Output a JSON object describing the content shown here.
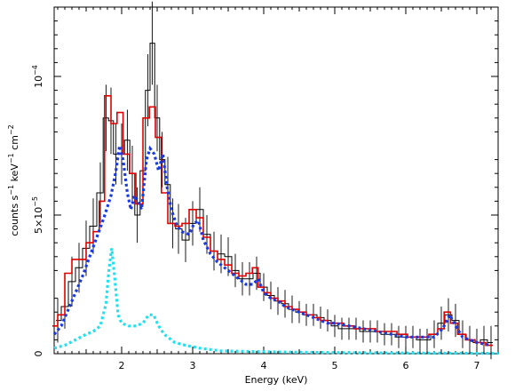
{
  "chart_data": {
    "type": "line",
    "title": "",
    "xlabel": "Energy (keV)",
    "ylabel_parts": {
      "main": "counts s",
      "exp1": "−1",
      "mid": " keV",
      "exp2": "−1",
      "tail": " cm",
      "exp3": "−2"
    },
    "xlim": [
      1.05,
      7.3
    ],
    "ylim": [
      0,
      0.000125
    ],
    "x_ticks": [
      {
        "value": 2,
        "label": "2"
      },
      {
        "value": 3,
        "label": "3"
      },
      {
        "value": 4,
        "label": "4"
      },
      {
        "value": 5,
        "label": "5"
      },
      {
        "value": 6,
        "label": "6"
      },
      {
        "value": 7,
        "label": "7"
      }
    ],
    "y_ticks": [
      {
        "value": 0,
        "mantissa": "0",
        "exp": ""
      },
      {
        "value": 5e-05,
        "mantissa": "5×10",
        "exp": "−5"
      },
      {
        "value": 0.0001,
        "mantissa": "10",
        "exp": "−4"
      }
    ],
    "series": [
      {
        "role": "data",
        "style": "step-errorbar",
        "color": "#000000",
        "points": [
          [
            1.1,
            1.2e-05,
            8e-06
          ],
          [
            1.2,
            1.7e-05,
            8e-06
          ],
          [
            1.3,
            2.6e-05,
            9e-06
          ],
          [
            1.4,
            3.1e-05,
            9e-06
          ],
          [
            1.5,
            3.8e-05,
            1e-05
          ],
          [
            1.6,
            4.6e-05,
            1e-05
          ],
          [
            1.7,
            5.8e-05,
            1.1e-05
          ],
          [
            1.78,
            8.5e-05,
            1.2e-05
          ],
          [
            1.85,
            8.4e-05,
            1.2e-05
          ],
          [
            1.92,
            7.2e-05,
            1.1e-05
          ],
          [
            2.0,
            7.2e-05,
            1.1e-05
          ],
          [
            2.08,
            7.7e-05,
            1.1e-05
          ],
          [
            2.15,
            6.5e-05,
            1e-05
          ],
          [
            2.22,
            5e-05,
            1e-05
          ],
          [
            2.3,
            6.6e-05,
            1e-05
          ],
          [
            2.37,
            9.5e-05,
            1.3e-05
          ],
          [
            2.43,
            0.000112,
            1.5e-05
          ],
          [
            2.5,
            8.5e-05,
            1.2e-05
          ],
          [
            2.57,
            7e-05,
            1e-05
          ],
          [
            2.65,
            6.1e-05,
            1e-05
          ],
          [
            2.72,
            4.7e-05,
            9e-06
          ],
          [
            2.8,
            4.5e-05,
            9e-06
          ],
          [
            2.9,
            4.1e-05,
            8e-06
          ],
          [
            3.0,
            4.7e-05,
            8e-06
          ],
          [
            3.1,
            5.2e-05,
            8e-06
          ],
          [
            3.2,
            4.3e-05,
            7e-06
          ],
          [
            3.3,
            3.7e-05,
            7e-06
          ],
          [
            3.4,
            3.6e-05,
            7e-06
          ],
          [
            3.5,
            3.5e-05,
            7e-06
          ],
          [
            3.6,
            3e-05,
            6e-06
          ],
          [
            3.7,
            2.7e-05,
            6e-06
          ],
          [
            3.8,
            2.7e-05,
            6e-06
          ],
          [
            3.9,
            2.9e-05,
            6e-06
          ],
          [
            4.0,
            2.4e-05,
            5e-06
          ],
          [
            4.1,
            2.1e-05,
            5e-06
          ],
          [
            4.2,
            1.9e-05,
            5e-06
          ],
          [
            4.3,
            1.8e-05,
            5e-06
          ],
          [
            4.4,
            1.6e-05,
            5e-06
          ],
          [
            4.5,
            1.5e-05,
            4e-06
          ],
          [
            4.6,
            1.4e-05,
            4e-06
          ],
          [
            4.7,
            1.4e-05,
            4e-06
          ],
          [
            4.8,
            1.3e-05,
            4e-06
          ],
          [
            4.9,
            1.2e-05,
            4e-06
          ],
          [
            5.0,
            1e-05,
            4e-06
          ],
          [
            5.1,
            9e-06,
            4e-06
          ],
          [
            5.2,
            9e-06,
            4e-06
          ],
          [
            5.3,
            9e-06,
            4e-06
          ],
          [
            5.4,
            8e-06,
            4e-06
          ],
          [
            5.5,
            8e-06,
            4e-06
          ],
          [
            5.6,
            8e-06,
            4e-06
          ],
          [
            5.7,
            7e-06,
            4e-06
          ],
          [
            5.8,
            7e-06,
            4e-06
          ],
          [
            5.9,
            6e-06,
            4e-06
          ],
          [
            6.0,
            6e-06,
            4e-06
          ],
          [
            6.1,
            6e-06,
            4e-06
          ],
          [
            6.2,
            5e-06,
            4e-06
          ],
          [
            6.3,
            5e-06,
            4e-06
          ],
          [
            6.4,
            7e-06,
            5e-06
          ],
          [
            6.5,
            1.1e-05,
            6e-06
          ],
          [
            6.6,
            1.4e-05,
            6e-06
          ],
          [
            6.7,
            1.2e-05,
            6e-06
          ],
          [
            6.8,
            7e-06,
            5e-06
          ],
          [
            6.9,
            5e-06,
            5e-06
          ],
          [
            7.0,
            4e-06,
            5e-06
          ],
          [
            7.1,
            5e-06,
            5e-06
          ],
          [
            7.2,
            4e-06,
            6e-06
          ]
        ]
      },
      {
        "role": "total-model",
        "style": "step",
        "color": "#e00000",
        "points": [
          [
            1.05,
            1e-05
          ],
          [
            1.15,
            1.4e-05
          ],
          [
            1.25,
            2.9e-05
          ],
          [
            1.35,
            3.4e-05
          ],
          [
            1.45,
            3.4e-05
          ],
          [
            1.55,
            4e-05
          ],
          [
            1.65,
            4.4e-05
          ],
          [
            1.72,
            5.5e-05
          ],
          [
            1.8,
            9.3e-05
          ],
          [
            1.9,
            8.3e-05
          ],
          [
            1.97,
            8.7e-05
          ],
          [
            2.07,
            7.2e-05
          ],
          [
            2.15,
            6.5e-05
          ],
          [
            2.25,
            5.4e-05
          ],
          [
            2.35,
            8.5e-05
          ],
          [
            2.43,
            8.9e-05
          ],
          [
            2.52,
            7.8e-05
          ],
          [
            2.6,
            5.8e-05
          ],
          [
            2.7,
            4.7e-05
          ],
          [
            2.8,
            4.6e-05
          ],
          [
            2.9,
            4.7e-05
          ],
          [
            3.0,
            5.2e-05
          ],
          [
            3.1,
            4.9e-05
          ],
          [
            3.2,
            4.2e-05
          ],
          [
            3.3,
            3.7e-05
          ],
          [
            3.4,
            3.4e-05
          ],
          [
            3.5,
            3.2e-05
          ],
          [
            3.6,
            2.9e-05
          ],
          [
            3.7,
            2.8e-05
          ],
          [
            3.8,
            2.9e-05
          ],
          [
            3.88,
            3.1e-05
          ],
          [
            3.96,
            2.4e-05
          ],
          [
            4.05,
            2.2e-05
          ],
          [
            4.15,
            2e-05
          ],
          [
            4.25,
            1.9e-05
          ],
          [
            4.35,
            1.7e-05
          ],
          [
            4.45,
            1.6e-05
          ],
          [
            4.55,
            1.5e-05
          ],
          [
            4.65,
            1.4e-05
          ],
          [
            4.75,
            1.3e-05
          ],
          [
            4.85,
            1.2e-05
          ],
          [
            4.95,
            1.1e-05
          ],
          [
            5.05,
            1.1e-05
          ],
          [
            5.2,
            1e-05
          ],
          [
            5.35,
            9e-06
          ],
          [
            5.5,
            9e-06
          ],
          [
            5.65,
            8e-06
          ],
          [
            5.8,
            8e-06
          ],
          [
            5.95,
            7e-06
          ],
          [
            6.1,
            6e-06
          ],
          [
            6.25,
            6e-06
          ],
          [
            6.4,
            7e-06
          ],
          [
            6.5,
            9e-06
          ],
          [
            6.58,
            1.5e-05
          ],
          [
            6.68,
            1.1e-05
          ],
          [
            6.78,
            7e-06
          ],
          [
            6.9,
            5e-06
          ],
          [
            7.05,
            4e-06
          ],
          [
            7.2,
            3e-06
          ]
        ]
      },
      {
        "role": "component-1",
        "style": "dotted",
        "color": "#1a3ae0",
        "points": [
          [
            1.05,
            7e-06
          ],
          [
            1.15,
            1e-05
          ],
          [
            1.25,
            1.6e-05
          ],
          [
            1.35,
            2.2e-05
          ],
          [
            1.45,
            2.8e-05
          ],
          [
            1.55,
            3.5e-05
          ],
          [
            1.65,
            4.2e-05
          ],
          [
            1.75,
            4.9e-05
          ],
          [
            1.85,
            5.7e-05
          ],
          [
            1.92,
            6.6e-05
          ],
          [
            1.97,
            7.5e-05
          ],
          [
            2.02,
            7e-05
          ],
          [
            2.08,
            5.8e-05
          ],
          [
            2.13,
            5.2e-05
          ],
          [
            2.18,
            5.7e-05
          ],
          [
            2.23,
            5.5e-05
          ],
          [
            2.28,
            5.2e-05
          ],
          [
            2.35,
            7e-05
          ],
          [
            2.4,
            7.4e-05
          ],
          [
            2.46,
            7.2e-05
          ],
          [
            2.52,
            6.6e-05
          ],
          [
            2.58,
            7.2e-05
          ],
          [
            2.64,
            6e-05
          ],
          [
            2.7,
            5.2e-05
          ],
          [
            2.78,
            4.6e-05
          ],
          [
            2.85,
            4.4e-05
          ],
          [
            2.95,
            4.3e-05
          ],
          [
            3.02,
            4.7e-05
          ],
          [
            3.08,
            4.8e-05
          ],
          [
            3.15,
            4.1e-05
          ],
          [
            3.25,
            3.6e-05
          ],
          [
            3.35,
            3.3e-05
          ],
          [
            3.45,
            3.1e-05
          ],
          [
            3.55,
            2.9e-05
          ],
          [
            3.65,
            2.7e-05
          ],
          [
            3.75,
            2.5e-05
          ],
          [
            3.85,
            2.5e-05
          ],
          [
            3.92,
            2.7e-05
          ],
          [
            4.0,
            2.2e-05
          ],
          [
            4.1,
            2e-05
          ],
          [
            4.2,
            1.9e-05
          ],
          [
            4.3,
            1.7e-05
          ],
          [
            4.4,
            1.6e-05
          ],
          [
            4.5,
            1.5e-05
          ],
          [
            4.6,
            1.4e-05
          ],
          [
            4.7,
            1.3e-05
          ],
          [
            4.8,
            1.2e-05
          ],
          [
            4.9,
            1.1e-05
          ],
          [
            5.0,
            1.1e-05
          ],
          [
            5.2,
            1e-05
          ],
          [
            5.4,
            9e-06
          ],
          [
            5.6,
            8e-06
          ],
          [
            5.8,
            7e-06
          ],
          [
            6.0,
            6e-06
          ],
          [
            6.2,
            6e-06
          ],
          [
            6.4,
            6e-06
          ],
          [
            6.52,
            9e-06
          ],
          [
            6.62,
            1.4e-05
          ],
          [
            6.7,
            1e-05
          ],
          [
            6.8,
            6e-06
          ],
          [
            7.0,
            4e-06
          ],
          [
            7.2,
            3e-06
          ]
        ]
      },
      {
        "role": "component-2",
        "style": "dotted",
        "color": "#22e0f0",
        "points": [
          [
            1.05,
            2e-06
          ],
          [
            1.2,
            3e-06
          ],
          [
            1.35,
            5e-06
          ],
          [
            1.5,
            7e-06
          ],
          [
            1.6,
            8e-06
          ],
          [
            1.7,
            1e-05
          ],
          [
            1.78,
            1.8e-05
          ],
          [
            1.82,
            3e-05
          ],
          [
            1.86,
            3.8e-05
          ],
          [
            1.9,
            2.8e-05
          ],
          [
            1.95,
            1.4e-05
          ],
          [
            2.0,
            1.1e-05
          ],
          [
            2.1,
            1e-05
          ],
          [
            2.2,
            1e-05
          ],
          [
            2.3,
            1.1e-05
          ],
          [
            2.38,
            1.4e-05
          ],
          [
            2.45,
            1.4e-05
          ],
          [
            2.52,
            1e-05
          ],
          [
            2.6,
            7e-06
          ],
          [
            2.75,
            4e-06
          ],
          [
            2.9,
            3e-06
          ],
          [
            3.1,
            2e-06
          ],
          [
            3.4,
            1e-06
          ],
          [
            3.8,
            8e-07
          ],
          [
            4.5,
            5e-07
          ],
          [
            5.5,
            3e-07
          ],
          [
            6.5,
            2e-07
          ],
          [
            7.3,
            1e-07
          ]
        ]
      }
    ]
  }
}
